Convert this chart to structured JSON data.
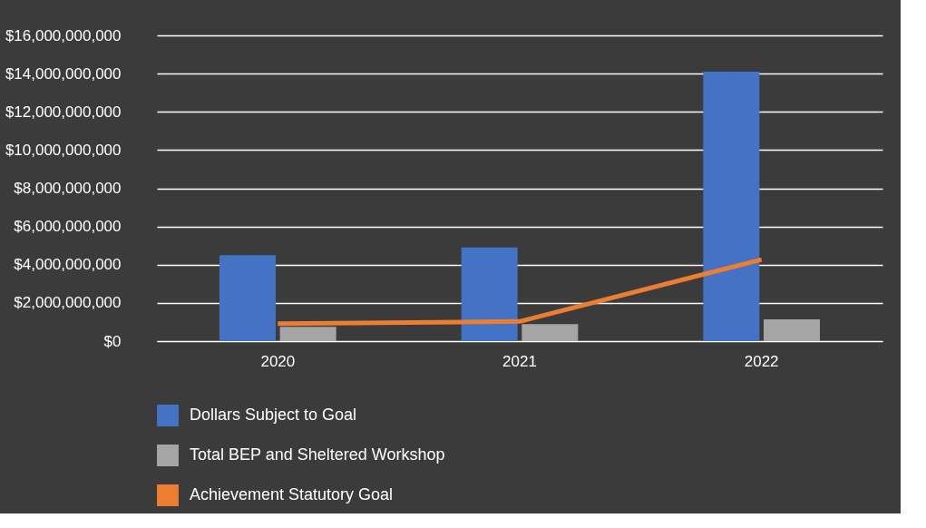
{
  "chart_data": {
    "type": "bar",
    "categories": [
      "2020",
      "2021",
      "2022"
    ],
    "series": [
      {
        "name": "Dollars Subject to Goal",
        "color": "#4472c4",
        "values": [
          4500000000,
          4900000000,
          14100000000
        ]
      },
      {
        "name": "Total BEP and Sheltered Workshop",
        "color": "#a5a5a5",
        "values": [
          750000000,
          890000000,
          1140000000
        ]
      },
      {
        "name": "Achievement Statutory Goal",
        "color": "#ed7d31",
        "type": "line",
        "values": [
          910000000,
          1030000000,
          4270000000
        ]
      }
    ],
    "ylim": [
      0,
      16000000000
    ],
    "yticks": [
      {
        "value": 0,
        "label": "$0"
      },
      {
        "value": 2000000000,
        "label": "$2,000,000,000"
      },
      {
        "value": 4000000000,
        "label": "$4,000,000,000"
      },
      {
        "value": 6000000000,
        "label": "$6,000,000,000"
      },
      {
        "value": 8000000000,
        "label": "$8,000,000,000"
      },
      {
        "value": 10000000000,
        "label": "$10,000,000,000"
      },
      {
        "value": 12000000000,
        "label": "$12,000,000,000"
      },
      {
        "value": 14000000000,
        "label": "$14,000,000,000"
      },
      {
        "value": 16000000000,
        "label": "$16,000,000,000"
      }
    ],
    "grid": "y",
    "legend": "bottom"
  }
}
